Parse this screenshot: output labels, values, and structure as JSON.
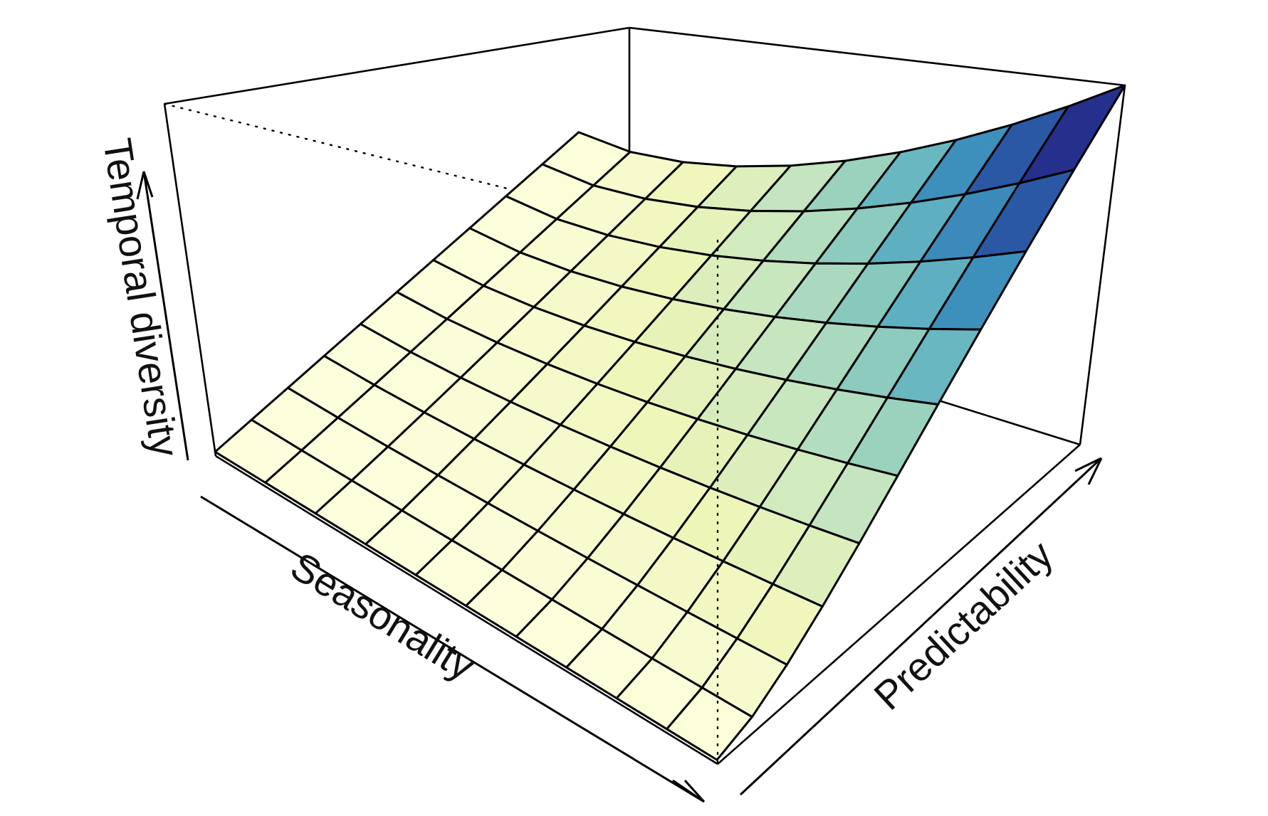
{
  "chart_data": {
    "type": "surface3d",
    "xlabel": "Seasonality",
    "ylabel": "Predictability",
    "zlabel": "Temporal diversity",
    "grid_resolution": [
      10,
      10
    ],
    "color_ramp": [
      "#ffffe0",
      "#eef5b8",
      "#c6e6c0",
      "#88c9bd",
      "#44a1c3",
      "#2c5da8",
      "#26308d",
      "#0c1c54"
    ],
    "z_min": 0,
    "z_max": 1,
    "surface": "increasing in both seasonality and predictability, steepest at high values of both"
  }
}
